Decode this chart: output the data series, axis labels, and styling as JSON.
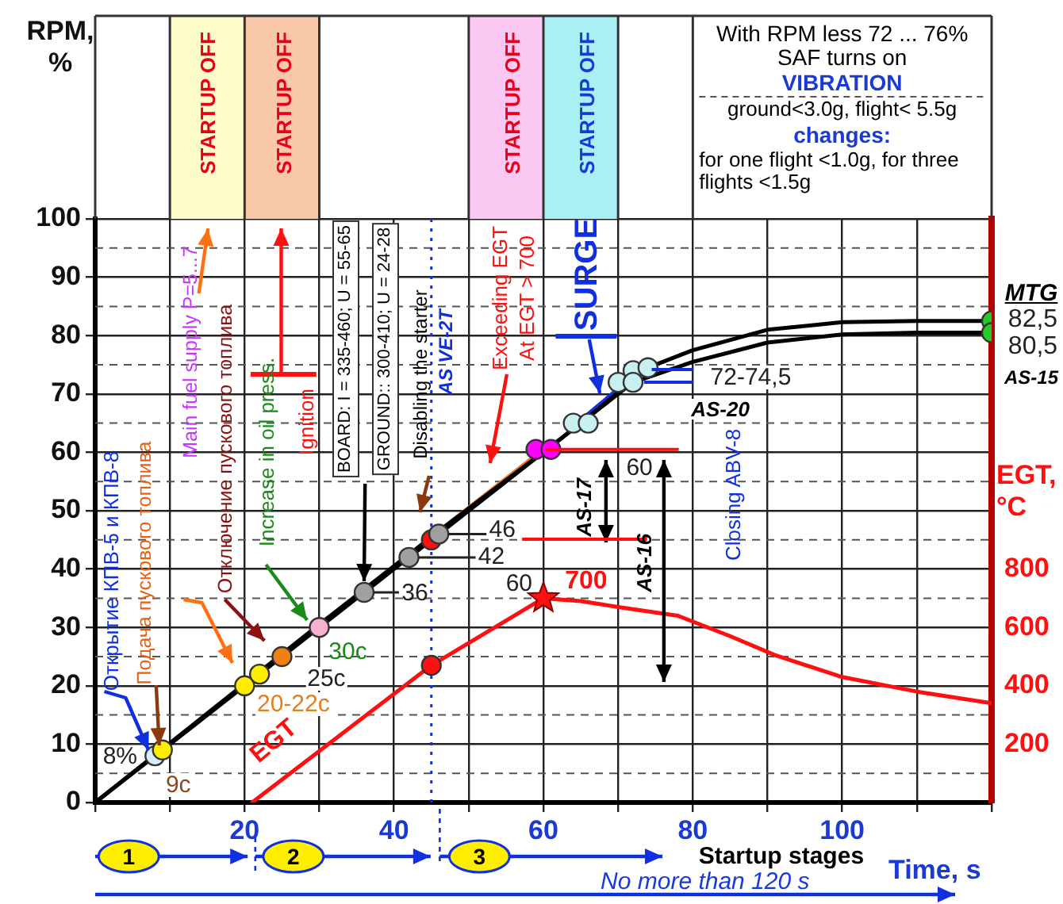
{
  "chart_data": {
    "type": "line",
    "ylabel": "RPM, %",
    "xlabel": "Time, s",
    "y2label": "EGT, °C",
    "xlim": [
      0,
      120
    ],
    "xticks": [
      {
        "value": 0,
        "label": null
      },
      {
        "value": 10,
        "label": null
      },
      20,
      {
        "value": 30,
        "label": null
      },
      40,
      {
        "value": 50,
        "label": null
      },
      60,
      {
        "value": 70,
        "label": null
      },
      80,
      {
        "value": 90,
        "label": null
      },
      100,
      {
        "value": 110,
        "label": null
      },
      {
        "value": 120,
        "label": null
      }
    ],
    "ylim": [
      0,
      100
    ],
    "yticks": [
      0,
      10,
      20,
      30,
      40,
      50,
      60,
      70,
      80,
      90,
      100
    ],
    "y2lim": [
      0,
      2000
    ],
    "y2ticks": [
      200,
      400,
      600,
      800
    ],
    "grid": true,
    "legend": false,
    "series": [
      {
        "color": "#000000",
        "marker": "none",
        "x": [
          0,
          30,
          46,
          61,
          66,
          74,
          80,
          90,
          100,
          110,
          120
        ],
        "values": [
          0,
          30.5,
          46.5,
          61,
          66,
          74.5,
          77.5,
          81,
          82.3,
          82.5,
          82.5
        ]
      },
      {
        "color": "#000000",
        "marker": "none",
        "x": [
          0,
          46,
          60,
          65,
          72,
          80,
          90,
          100,
          110,
          120
        ],
        "values": [
          0,
          46,
          60,
          65,
          72,
          75.5,
          78.8,
          80.2,
          80.5,
          80.5
        ]
      },
      {
        "color": "#f07818",
        "marker": "none",
        "x": [
          46,
          60
        ],
        "values": [
          46.5,
          60.5
        ]
      },
      {
        "color": "#1030e0",
        "marker": "none",
        "x": [
          65,
          72
        ],
        "values": [
          65.5,
          73
        ]
      },
      {
        "type": "scatter",
        "marker": "circle",
        "x": [
          8,
          9,
          20,
          22,
          25,
          30,
          36,
          42,
          45,
          46,
          59,
          61,
          64,
          66,
          70,
          72,
          72,
          74,
          120,
          120
        ],
        "values": [
          8,
          9,
          20,
          22,
          25,
          30,
          36,
          42,
          45,
          46,
          60.5,
          60.5,
          65,
          65,
          72,
          74,
          72,
          74.5,
          82.5,
          80.5
        ],
        "colors": [
          "#d6ecff",
          "#ffee00",
          "#ffee00",
          "#ffee00",
          "#f08010",
          "#f7b0d0",
          "#a0a0a0",
          "#a0a0a0",
          "#ff1010",
          "#a0a0a0",
          "#ff00ff",
          "#ff00ff",
          "#c8f0f0",
          "#c8f0f0",
          "#c8f0f0",
          "#c8f0f0",
          "#c8f0f0",
          "#c8f0f0",
          "#22cc22",
          "#22cc22"
        ]
      },
      {
        "axis": "y2",
        "color": "#ff1010",
        "marker": "none",
        "x": [
          21,
          45,
          60,
          65,
          70,
          78,
          85,
          91,
          100,
          110,
          120
        ],
        "values": [
          0,
          470,
          700,
          690,
          670,
          640,
          570,
          505,
          430,
          380,
          340
        ]
      },
      {
        "type": "scatter",
        "axis": "y2",
        "marker": "circle",
        "color": "#ff1010",
        "x": [
          45
        ],
        "values": [
          470
        ]
      },
      {
        "type": "scatter",
        "axis": "y2",
        "marker": "star",
        "color": "#ff1010",
        "x": [
          60
        ],
        "values": [
          700
        ]
      }
    ],
    "ref_lines": [
      {
        "axis": "x",
        "value": 45,
        "color": "#1030e0",
        "line_style": "dotted"
      }
    ],
    "annotations": [
      "STARTUP OFF",
      "STARTUP OFF",
      "STARTUP OFF",
      "STARTUP OFF",
      "With RPM less 72 ... 76% SAF turns on",
      "VIBRATION",
      "ground<3.0g, flight< 5.5g",
      "changes:",
      "for one flight <1.0g, for three flights <1.5g",
      "Открытие КПВ-5 и КПВ-8",
      "Подача пускового топлива",
      "Main fuel supply P=5...7",
      "Отключение пускового топлива",
      "Increase in oil press.",
      "Ignition",
      {
        "text": "BOARD: I = 335-460; U = 55-65",
        "x": 36,
        "y": 36
      },
      "GROUND:: 300-410; U = 24-28",
      "Disabling the starter",
      "AS VE-2T",
      "Exceeding EGT",
      "At EGT > 700",
      "SURGE",
      "Closing ABV-8",
      "AS-17",
      "AS-16",
      "EGT",
      {
        "text": "8%",
        "x": 8,
        "y": 8
      },
      {
        "text": "9c",
        "x": 9,
        "y": 9
      },
      "20-22c",
      {
        "text": "25c",
        "x": 25,
        "y": 25
      },
      {
        "text": "30c",
        "x": 30,
        "y": 30
      },
      {
        "text": "36",
        "x": 36,
        "y": 36
      },
      {
        "text": "42",
        "x": 42,
        "y": 42
      },
      {
        "text": "46",
        "x": 46,
        "y": 46
      },
      "60",
      "700",
      {
        "text": "60",
        "x": 59,
        "y": 60.5
      },
      "72-74,5",
      "AS-20",
      "MTG",
      {
        "text": "82,5",
        "x": 120,
        "y": 82.5
      },
      {
        "text": "80,5",
        "x": 120,
        "y": 80.5
      },
      "AS-15",
      "1",
      "2",
      "3",
      "Startup stages",
      "No more than 120 s"
    ]
  }
}
